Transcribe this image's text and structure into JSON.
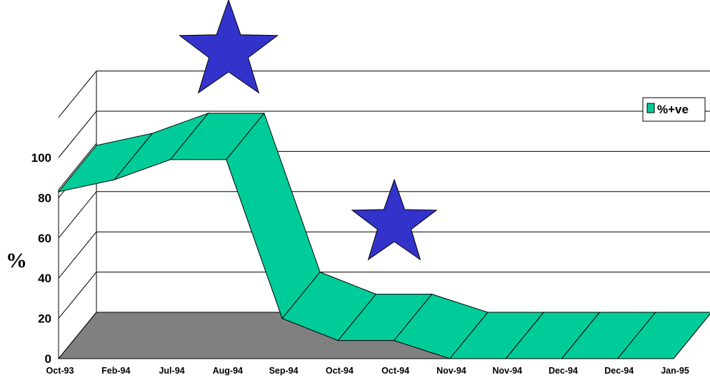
{
  "chart_data": {
    "type": "area",
    "style": "3d",
    "categories": [
      "Oct-93",
      "Feb-94",
      "Jul-94",
      "Aug-94",
      "Sep-94",
      "Oct-94",
      "Oct-94",
      "Nov-94",
      "Nov-94",
      "Dec-94",
      "Dec-94",
      "Jan-95"
    ],
    "series": [
      {
        "name": "%+ve",
        "values": [
          83,
          89,
          99,
          99,
          20,
          9,
          9,
          0,
          0,
          0,
          0,
          0
        ],
        "color": "#00CC99"
      }
    ],
    "ylabel": "%",
    "yticks": [
      "0",
      "20",
      "40",
      "60",
      "80",
      "100"
    ],
    "ylim": [
      0,
      120
    ],
    "grid": true,
    "legend_position": "top-right",
    "floor_color": "#808080",
    "markers": [
      {
        "shape": "star",
        "color": "#3333CC",
        "near_category": "Aug-94"
      },
      {
        "shape": "star",
        "color": "#3333CC",
        "near_category": "Oct-94"
      }
    ]
  }
}
